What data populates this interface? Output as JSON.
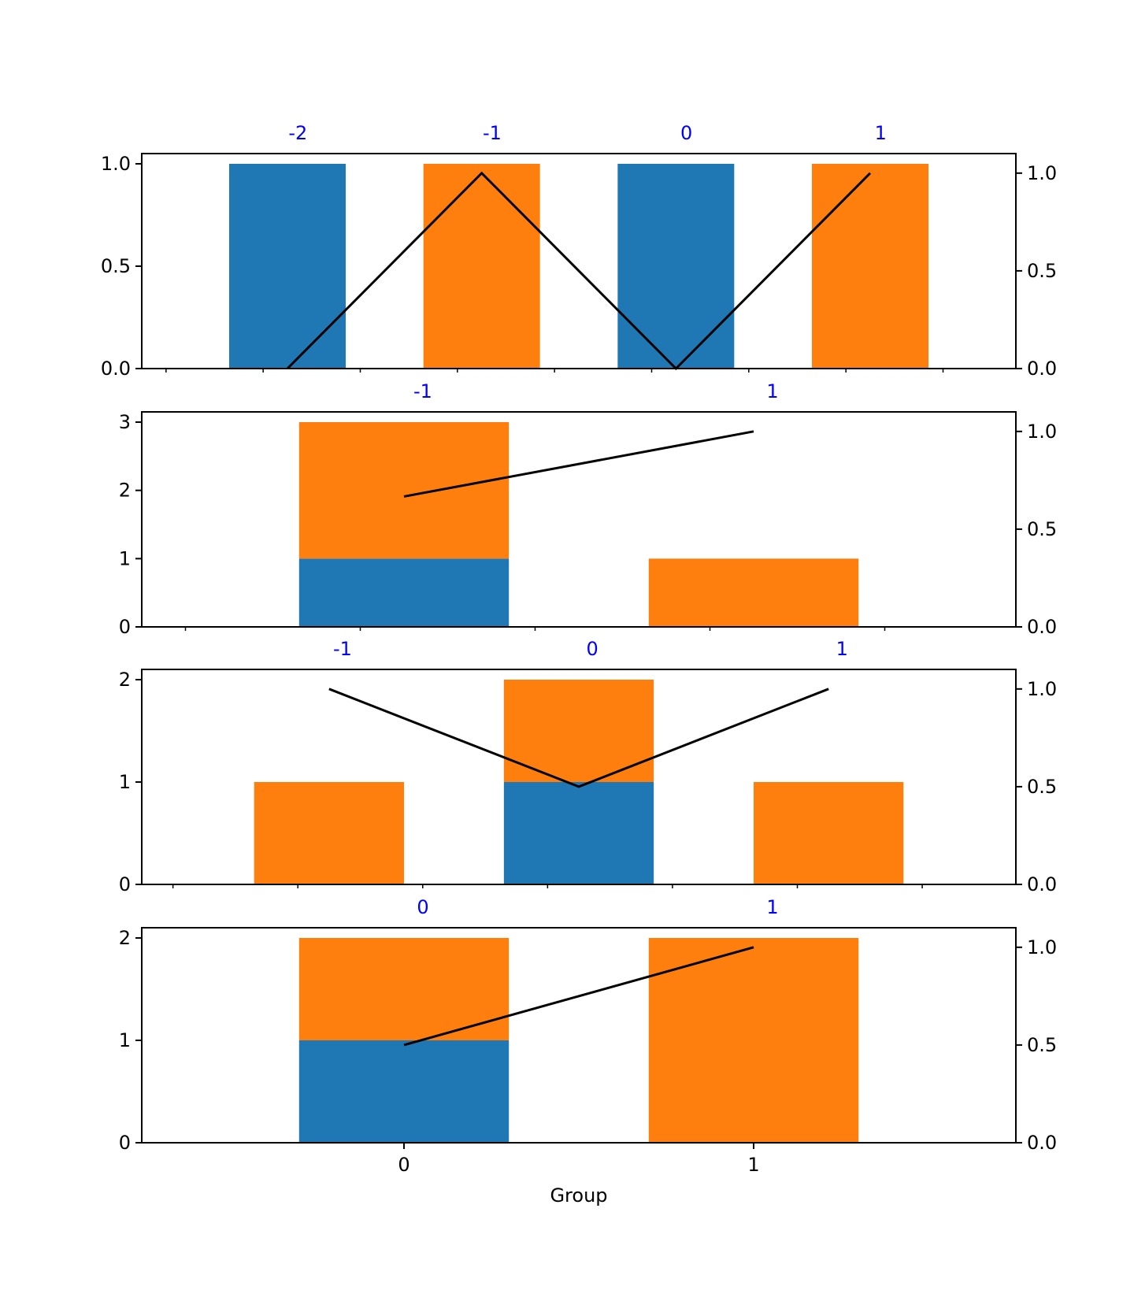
{
  "colors": {
    "series_a": "#1f77b4",
    "series_b": "#ff7f0e",
    "line": "#000000",
    "top_labels": "#0000ff"
  },
  "chart_data": [
    {
      "type": "bar",
      "stacked": true,
      "categories": [
        "-2",
        "-1",
        "0",
        "1"
      ],
      "series": [
        {
          "values": [
            1,
            0,
            1,
            0
          ]
        },
        {
          "values": [
            0,
            1,
            0,
            1
          ]
        }
      ],
      "line": {
        "values": [
          0.0,
          1.0,
          0.0,
          1.0
        ]
      },
      "ylim": [
        0,
        1.05
      ],
      "yticks": [
        "0.0",
        "0.5",
        "1.0"
      ],
      "ylim_right": [
        0,
        1.1
      ],
      "yticks_right": [
        "0.0",
        "0.5",
        "1.0"
      ],
      "xticklabels": []
    },
    {
      "type": "bar",
      "stacked": true,
      "categories": [
        "-1",
        "1"
      ],
      "series": [
        {
          "values": [
            1,
            0
          ]
        },
        {
          "values": [
            2,
            1
          ]
        }
      ],
      "line": {
        "values": [
          0.667,
          1.0
        ]
      },
      "ylim": [
        0,
        3.15
      ],
      "yticks": [
        "0",
        "1",
        "2",
        "3"
      ],
      "ylim_right": [
        0,
        1.1
      ],
      "yticks_right": [
        "0.0",
        "0.5",
        "1.0"
      ],
      "xticklabels": []
    },
    {
      "type": "bar",
      "stacked": true,
      "categories": [
        "-1",
        "0",
        "1"
      ],
      "series": [
        {
          "values": [
            0,
            1,
            0
          ]
        },
        {
          "values": [
            1,
            1,
            1
          ]
        }
      ],
      "line": {
        "values": [
          1.0,
          0.5,
          1.0
        ]
      },
      "ylim": [
        0,
        2.1
      ],
      "yticks": [
        "0",
        "1",
        "2"
      ],
      "ylim_right": [
        0,
        1.1
      ],
      "yticks_right": [
        "0.0",
        "0.5",
        "1.0"
      ],
      "xticklabels": []
    },
    {
      "type": "bar",
      "stacked": true,
      "categories": [
        "0",
        "1"
      ],
      "series": [
        {
          "values": [
            1,
            0
          ]
        },
        {
          "values": [
            1,
            2
          ]
        }
      ],
      "line": {
        "values": [
          0.5,
          1.0
        ]
      },
      "ylim": [
        0,
        2.1
      ],
      "yticks": [
        "0",
        "1",
        "2"
      ],
      "ylim_right": [
        0,
        1.1
      ],
      "yticks_right": [
        "0.0",
        "0.5",
        "1.0"
      ],
      "xticklabels": [
        "0",
        "1"
      ],
      "xlabel": "Group"
    }
  ]
}
